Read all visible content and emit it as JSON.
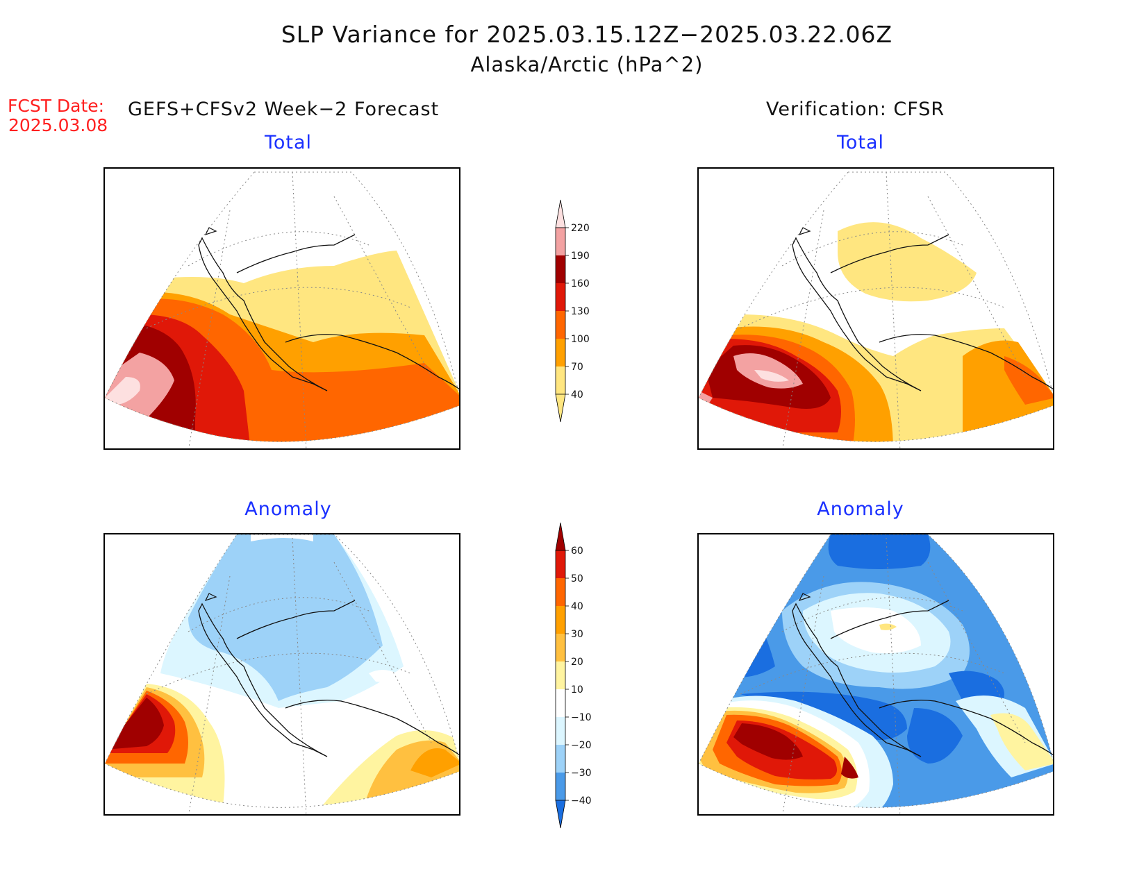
{
  "title": "SLP Variance for 2025.03.15.12Z−2025.03.22.06Z",
  "subtitle": "Alaska/Arctic (hPa^2)",
  "forecast_date_label": "FCST Date:",
  "forecast_date_value": "2025.03.08",
  "left_header": "GEFS+CFSv2 Week−2 Forecast",
  "right_header": "Verification: CFSR",
  "panels": {
    "forecast_total": {
      "title": "Total"
    },
    "verification_total": {
      "title": "Total"
    },
    "forecast_anomaly": {
      "title": "Anomaly"
    },
    "verification_anomaly": {
      "title": "Anomaly"
    }
  },
  "colorbars": {
    "total": {
      "levels": [
        "220",
        "190",
        "160",
        "130",
        "100",
        "70",
        "40"
      ],
      "colors": [
        "#fde0e0",
        "#f3a2a2",
        "#a00000",
        "#e01808",
        "#ff6600",
        "#ffa000",
        "#ffe680"
      ]
    },
    "anomaly": {
      "levels": [
        "60",
        "50",
        "40",
        "30",
        "20",
        "10",
        "−10",
        "−20",
        "−30",
        "−40"
      ],
      "colors": [
        "#a00000",
        "#e01808",
        "#ff6600",
        "#ffa000",
        "#ffc040",
        "#fff4a0",
        "#ffffff",
        "#dcf6ff",
        "#9dd2f8",
        "#4a9ae8",
        "#1a6ee0"
      ]
    }
  },
  "palette": {
    "total_40_70": "#ffe680",
    "total_70_100": "#ffa000",
    "total_100_130": "#ff6600",
    "total_130_160": "#e01808",
    "total_160_190": "#a00000",
    "total_190_220": "#f3a2a2",
    "total_220_plus": "#fde0e0",
    "anom_neg_10_20": "#dcf6ff",
    "anom_neg_20_30": "#9dd2f8",
    "anom_neg_30_40": "#4a9ae8",
    "anom_neg_40_plus": "#1a6ee0",
    "title_blue": "#1a30ff",
    "fcst_red": "#ff2020"
  }
}
